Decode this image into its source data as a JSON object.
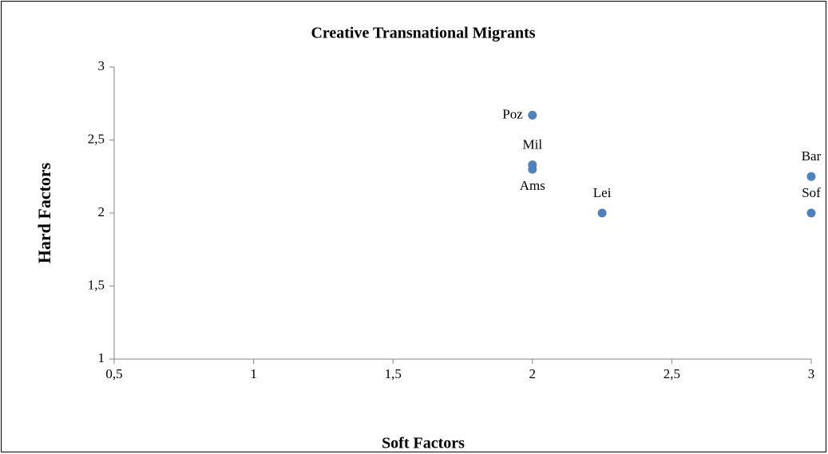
{
  "chart_data": {
    "type": "scatter",
    "title": "Creative Transnational Migrants",
    "x_label": "Soft Factors",
    "y_label": "Hard Factors",
    "labels": [
      "Poz",
      "Mil",
      "Ams",
      "Lei",
      "Bar",
      "Sof"
    ],
    "x": [
      2,
      2,
      2,
      2.25,
      3,
      3
    ],
    "values": [
      2.67,
      2.33,
      2.3,
      2,
      2.25,
      2
    ],
    "color": "#4f81bd",
    "xlim": [
      0.5,
      3
    ],
    "xticks": [
      {
        "value": 0.5,
        "label": "0,5"
      },
      1,
      {
        "value": 1.5,
        "label": "1,5"
      },
      2,
      {
        "value": 2.5,
        "label": "2,5"
      },
      3
    ],
    "ylim": [
      1,
      3
    ],
    "yticks": [
      1,
      {
        "value": 1.5,
        "label": "1,5"
      },
      2,
      {
        "value": 2.5,
        "label": "2,5"
      },
      3
    ],
    "grid": false
  }
}
